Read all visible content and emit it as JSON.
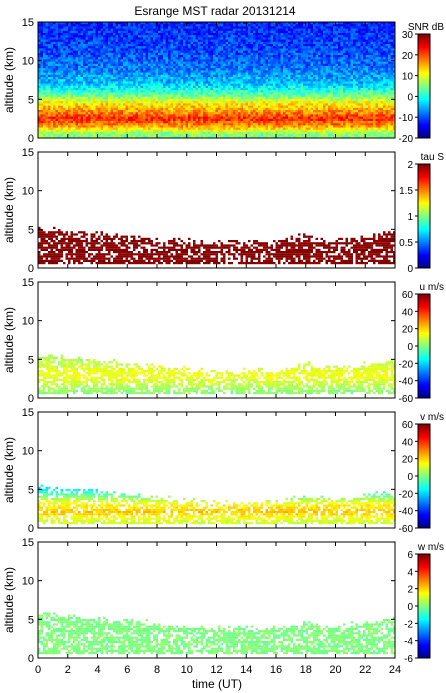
{
  "title": "Esrange MST radar 20131214",
  "xlabel": "time (UT)",
  "colormap": [
    "#000080",
    "#0000ff",
    "#0080ff",
    "#00ffff",
    "#80ff80",
    "#ffff00",
    "#ff8000",
    "#ff0000",
    "#800000"
  ],
  "chart_data": [
    {
      "type": "heatmap",
      "name": "snr",
      "ylabel": "altitude (km)",
      "colorbar_label": "SNR dB",
      "xlim": [
        0,
        24
      ],
      "ylim": [
        0,
        15
      ],
      "clim": [
        -20,
        30
      ],
      "xticks": [
        0,
        2,
        4,
        6,
        8,
        10,
        12,
        14,
        16,
        18,
        20,
        22,
        24
      ],
      "yticks": [
        0,
        5,
        10,
        15
      ],
      "cticks": [
        -20,
        -10,
        0,
        10,
        20,
        30
      ],
      "profile": {
        "altitude_km": [
          0.5,
          1.5,
          2.5,
          3.5,
          4.5,
          5.5,
          7,
          9,
          11,
          13,
          14.5
        ],
        "value": [
          5,
          16,
          22,
          16,
          12,
          4,
          -4,
          -8,
          -10,
          -11,
          -12
        ]
      }
    },
    {
      "type": "heatmap",
      "name": "tau",
      "ylabel": "altitude (km)",
      "colorbar_label": "tau S",
      "xlim": [
        0,
        24
      ],
      "ylim": [
        0,
        15
      ],
      "clim": [
        0,
        2
      ],
      "xticks": [
        0,
        2,
        4,
        6,
        8,
        10,
        12,
        14,
        16,
        18,
        20,
        22,
        24
      ],
      "yticks": [
        0,
        5,
        10,
        15
      ],
      "cticks": [
        0,
        0.5,
        1,
        1.5,
        2
      ],
      "profile": {
        "altitude_km": [
          1,
          2,
          3,
          4,
          5
        ],
        "value": [
          2,
          2,
          2,
          2,
          2
        ]
      },
      "echo_top_km": {
        "time_ut": [
          0,
          4,
          8,
          12,
          16,
          18,
          20,
          24
        ],
        "value": [
          5.2,
          4.5,
          3.6,
          3.2,
          3.4,
          4.2,
          3.6,
          4.6
        ]
      }
    },
    {
      "type": "heatmap",
      "name": "u",
      "ylabel": "altitude (km)",
      "colorbar_label": "u m/s",
      "xlim": [
        0,
        24
      ],
      "ylim": [
        0,
        15
      ],
      "clim": [
        -60,
        60
      ],
      "xticks": [
        0,
        2,
        4,
        6,
        8,
        10,
        12,
        14,
        16,
        18,
        20,
        22,
        24
      ],
      "yticks": [
        0,
        5,
        10,
        15
      ],
      "cticks": [
        -60,
        -40,
        -20,
        0,
        20,
        40,
        60
      ],
      "profile": {
        "altitude_km": [
          1,
          2,
          3,
          4,
          5
        ],
        "value": [
          2,
          10,
          14,
          10,
          6
        ]
      },
      "echo_top_km": {
        "time_ut": [
          0,
          4,
          8,
          12,
          16,
          18,
          20,
          24
        ],
        "value": [
          5.6,
          4.8,
          4,
          3.4,
          3.4,
          4.4,
          3.8,
          4.8
        ]
      }
    },
    {
      "type": "heatmap",
      "name": "v",
      "ylabel": "altitude (km)",
      "colorbar_label": "v m/s",
      "xlim": [
        0,
        24
      ],
      "ylim": [
        0,
        15
      ],
      "clim": [
        -60,
        60
      ],
      "xticks": [
        0,
        2,
        4,
        6,
        8,
        10,
        12,
        14,
        16,
        18,
        20,
        22,
        24
      ],
      "yticks": [
        0,
        5,
        10,
        15
      ],
      "cticks": [
        -60,
        -40,
        -20,
        0,
        20,
        40,
        60
      ],
      "profile": {
        "altitude_km": [
          1,
          2,
          3,
          4,
          5
        ],
        "value": [
          10,
          22,
          16,
          2,
          -18
        ]
      },
      "echo_top_km": {
        "time_ut": [
          0,
          4,
          8,
          12,
          16,
          18,
          20,
          24
        ],
        "value": [
          5.4,
          4.8,
          3.8,
          3.2,
          3.2,
          4.2,
          3.6,
          4.6
        ]
      }
    },
    {
      "type": "heatmap",
      "name": "w",
      "ylabel": "altitude (km)",
      "colorbar_label": "w m/s",
      "xlim": [
        0,
        24
      ],
      "ylim": [
        0,
        15
      ],
      "clim": [
        -6,
        6
      ],
      "xticks": [
        0,
        2,
        4,
        6,
        8,
        10,
        12,
        14,
        16,
        18,
        20,
        22,
        24
      ],
      "yticks": [
        0,
        5,
        10,
        15
      ],
      "cticks": [
        -6,
        -4,
        -2,
        0,
        2,
        4,
        6
      ],
      "profile": {
        "altitude_km": [
          1,
          2,
          3,
          4,
          5
        ],
        "value": [
          0,
          0,
          0,
          0,
          0
        ]
      },
      "echo_top_km": {
        "time_ut": [
          0,
          4,
          8,
          12,
          16,
          18,
          20,
          24
        ],
        "value": [
          5.8,
          5.2,
          4.4,
          3.8,
          3.8,
          4.4,
          4.0,
          5.0
        ]
      }
    }
  ]
}
